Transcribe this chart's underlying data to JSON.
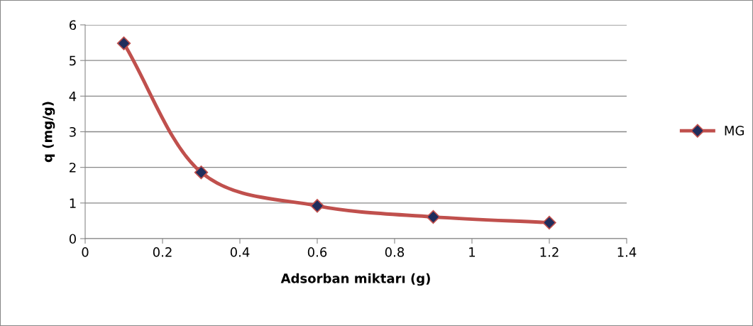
{
  "chart_data": {
    "type": "line",
    "xlabel": "Adsorban miktarı (g)",
    "ylabel": "q (mg/g)",
    "x": [
      0.1,
      0.3,
      0.6,
      0.9,
      1.2
    ],
    "series": [
      {
        "name": "MG",
        "color": "#c0504d",
        "values": [
          5.48,
          1.86,
          0.92,
          0.61,
          0.45
        ]
      }
    ],
    "marker": "diamond",
    "line_style": "solid",
    "xlim": [
      0,
      1.4
    ],
    "xticks": [
      0,
      0.2,
      0.4,
      0.6,
      0.8,
      1,
      1.2,
      1.4
    ],
    "ylim": [
      0,
      6
    ],
    "yticks": [
      0,
      1,
      2,
      3,
      4,
      5,
      6
    ],
    "grid": "y",
    "legend": "right"
  }
}
